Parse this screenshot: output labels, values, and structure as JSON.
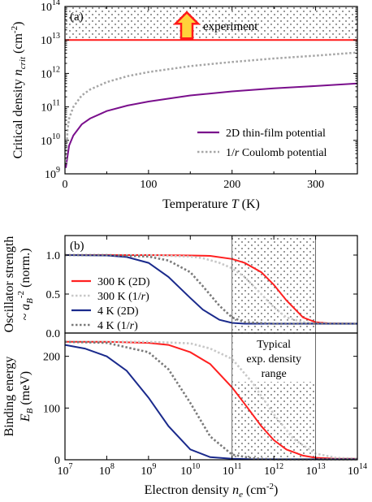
{
  "chart_data": [
    {
      "type": "line",
      "panel_label": "(a)",
      "xlabel": {
        "text": "Temperature ",
        "italic": "T",
        "unit": " (K)"
      },
      "ylabel": {
        "text": "Critical density ",
        "italic": "n",
        "sub": "crit",
        "unit": " (cm",
        "sup": "-2",
        "close": ")"
      },
      "x_ticks": [
        "0",
        "100",
        "200",
        "300"
      ],
      "y_ticks": [
        {
          "base": "10",
          "exp": "9"
        },
        {
          "base": "10",
          "exp": "10"
        },
        {
          "base": "10",
          "exp": "11"
        },
        {
          "base": "10",
          "exp": "12"
        },
        {
          "base": "10",
          "exp": "13"
        },
        {
          "base": "10",
          "exp": "14"
        }
      ],
      "xlim": [
        0,
        350
      ],
      "ylim": [
        1000000000.0,
        100000000000000.0
      ],
      "y_scale": "log",
      "experiment_label": "experiment",
      "experiment_level": 10000000000000.0,
      "series": [
        {
          "name": "2D thin-film potential",
          "color": "#7a0f8c",
          "style": "solid",
          "x": [
            1,
            5,
            10,
            20,
            30,
            50,
            75,
            100,
            150,
            200,
            250,
            300,
            350
          ],
          "y": [
            1500000000.0,
            7000000000.0,
            14000000000.0,
            30000000000.0,
            45000000000.0,
            75000000000.0,
            110000000000.0,
            145000000000.0,
            220000000000.0,
            290000000000.0,
            360000000000.0,
            420000000000.0,
            500000000000.0
          ]
        },
        {
          "name": "1/r Coulomb potential",
          "color": "#a6a6a6",
          "style": "dotted",
          "x": [
            1,
            3,
            5,
            10,
            20,
            30,
            50,
            75,
            100,
            150,
            200,
            250,
            300,
            350
          ],
          "y": [
            2000000000.0,
            20000000000.0,
            45000000000.0,
            100000000000.0,
            220000000000.0,
            330000000000.0,
            550000000000.0,
            830000000000.0,
            1100000000000.0,
            1650000000000.0,
            2200000000000.0,
            2800000000000.0,
            3400000000000.0,
            4200000000000.0
          ]
        }
      ],
      "legend": [
        {
          "text": "2D thin-film potential"
        },
        {
          "text": "1/",
          "italic": "r",
          "rest": " Coulomb potential"
        }
      ],
      "legend_position": "bottom-right"
    },
    {
      "type": "line",
      "panel_label": "(b)",
      "xlabel": {
        "text": "Electron density ",
        "italic": "n",
        "sub": "e",
        "unit": " (cm",
        "sup": "-2",
        "close": ")"
      },
      "x_ticks": [
        {
          "base": "10",
          "exp": "7"
        },
        {
          "base": "10",
          "exp": "8"
        },
        {
          "base": "10",
          "exp": "9"
        },
        {
          "base": "10",
          "exp": "10"
        },
        {
          "base": "10",
          "exp": "11"
        },
        {
          "base": "10",
          "exp": "12"
        },
        {
          "base": "10",
          "exp": "13"
        },
        {
          "base": "10",
          "exp": "14"
        }
      ],
      "xlim": [
        10000000.0,
        100000000000000.0
      ],
      "x_scale": "log",
      "typical_range": {
        "from": 100000000000.0,
        "to": 10000000000000.0,
        "label_lines": [
          "Typical",
          "exp. density",
          "range"
        ]
      },
      "legend": [
        {
          "text": "300 K (2D)",
          "color": "#ff2020",
          "style": "solid"
        },
        {
          "text": "300 K (1/",
          "italic": "r",
          "rest": ")",
          "color": "#c8c8c8",
          "style": "dotted"
        },
        {
          "text": "4 K (2D)",
          "color": "#1a2a8c",
          "style": "solid"
        },
        {
          "text": "4 K (1/",
          "italic": "r",
          "rest": ")",
          "color": "#7a7a7a",
          "style": "dotted"
        }
      ],
      "legend_position": "left",
      "subplots": [
        {
          "name": "oscillator-strength",
          "ylabel_lines": [
            {
              "text": "Oscillator strength"
            },
            {
              "text": "~ ",
              "italic": "a",
              "sub": "B",
              "sup": "-2",
              "rest": " (norm.)"
            }
          ],
          "y_ticks": [
            "0.0",
            "0.5",
            "1.0"
          ],
          "ylim": [
            0,
            1.25
          ],
          "series": [
            {
              "name": "300 K (2D)",
              "color": "#ff2020",
              "style": "solid",
              "x": [
                10000000.0,
                1000000000.0,
                10000000000.0,
                30000000000.0,
                100000000000.0,
                200000000000.0,
                500000000000.0,
                1000000000000.0,
                2000000000000.0,
                5000000000000.0,
                10000000000000.0,
                20000000000000.0,
                100000000000000.0
              ],
              "y": [
                1.0,
                1.0,
                0.995,
                0.99,
                0.95,
                0.9,
                0.78,
                0.62,
                0.42,
                0.2,
                0.14,
                0.125,
                0.12
              ]
            },
            {
              "name": "300 K (1/r)",
              "color": "#c8c8c8",
              "style": "dotted",
              "x": [
                10000000.0,
                1000000000.0,
                10000000000.0,
                20000000000.0,
                50000000000.0,
                100000000000.0,
                200000000000.0,
                500000000000.0,
                1000000000000.0,
                2000000000000.0,
                5000000000000.0,
                10000000000000.0,
                100000000000000.0
              ],
              "y": [
                1.0,
                1.0,
                0.98,
                0.96,
                0.9,
                0.83,
                0.72,
                0.5,
                0.33,
                0.2,
                0.14,
                0.125,
                0.12
              ]
            },
            {
              "name": "4 K (2D)",
              "color": "#1a2a8c",
              "style": "solid",
              "x": [
                10000000.0,
                100000000.0,
                300000000.0,
                1000000000.0,
                3000000000.0,
                10000000000.0,
                20000000000.0,
                50000000000.0,
                100000000000.0,
                200000000000.0,
                1000000000000.0,
                100000000000000.0
              ],
              "y": [
                1.0,
                0.995,
                0.975,
                0.9,
                0.72,
                0.45,
                0.3,
                0.17,
                0.13,
                0.12,
                0.12,
                0.12
              ]
            },
            {
              "name": "4 K (1/r)",
              "color": "#7a7a7a",
              "style": "dotted",
              "x": [
                10000000.0,
                100000000.0,
                1000000000.0,
                3000000000.0,
                10000000000.0,
                20000000000.0,
                50000000000.0,
                100000000000.0,
                200000000000.0,
                1000000000000.0,
                100000000000000.0
              ],
              "y": [
                1.0,
                1.0,
                0.98,
                0.93,
                0.78,
                0.6,
                0.35,
                0.2,
                0.14,
                0.12,
                0.12
              ]
            }
          ]
        },
        {
          "name": "binding-energy",
          "ylabel_lines": [
            {
              "text": "Binding energy"
            },
            {
              "italic": "E",
              "sub": "B",
              "rest": " (meV)"
            }
          ],
          "y_ticks": [
            "0",
            "100",
            "200"
          ],
          "ylim": [
            0,
            245
          ],
          "series": [
            {
              "name": "300 K (2D)",
              "color": "#ff2020",
              "style": "solid",
              "x": [
                10000000.0,
                100000000.0,
                1000000000.0,
                3000000000.0,
                10000000000.0,
                30000000000.0,
                100000000000.0,
                200000000000.0,
                500000000000.0,
                1000000000000.0,
                2000000000000.0,
                5000000000000.0,
                10000000000000.0,
                30000000000000.0,
                100000000000000.0
              ],
              "y": [
                228,
                228,
                226,
                222,
                208,
                185,
                140,
                108,
                65,
                38,
                20,
                8,
                4,
                2,
                2
              ]
            },
            {
              "name": "300 K (1/r)",
              "color": "#c8c8c8",
              "style": "dotted",
              "x": [
                10000000.0,
                1000000000.0,
                10000000000.0,
                30000000000.0,
                100000000000.0,
                300000000000.0,
                1000000000000.0,
                3000000000000.0,
                10000000000000.0,
                30000000000000.0,
                100000000000000.0
              ],
              "y": [
                228,
                228,
                225,
                215,
                195,
                150,
                88,
                40,
                12,
                4,
                2
              ]
            },
            {
              "name": "4 K (2D)",
              "color": "#1a2a8c",
              "style": "solid",
              "x": [
                10000000.0,
                30000000.0,
                100000000.0,
                300000000.0,
                1000000000.0,
                3000000000.0,
                10000000000.0,
                30000000000.0,
                100000000000.0,
                300000000000.0,
                100000000000000.0
              ],
              "y": [
                222,
                215,
                200,
                172,
                120,
                65,
                20,
                5,
                2,
                1,
                1
              ]
            },
            {
              "name": "4 K (1/r)",
              "color": "#7a7a7a",
              "style": "dotted",
              "x": [
                10000000.0,
                100000000.0,
                1000000000.0,
                3000000000.0,
                10000000000.0,
                30000000000.0,
                100000000000.0,
                300000000000.0,
                1000000000000.0,
                100000000000000.0
              ],
              "y": [
                228,
                226,
                208,
                175,
                110,
                45,
                10,
                3,
                1,
                1
              ]
            }
          ]
        }
      ]
    }
  ]
}
